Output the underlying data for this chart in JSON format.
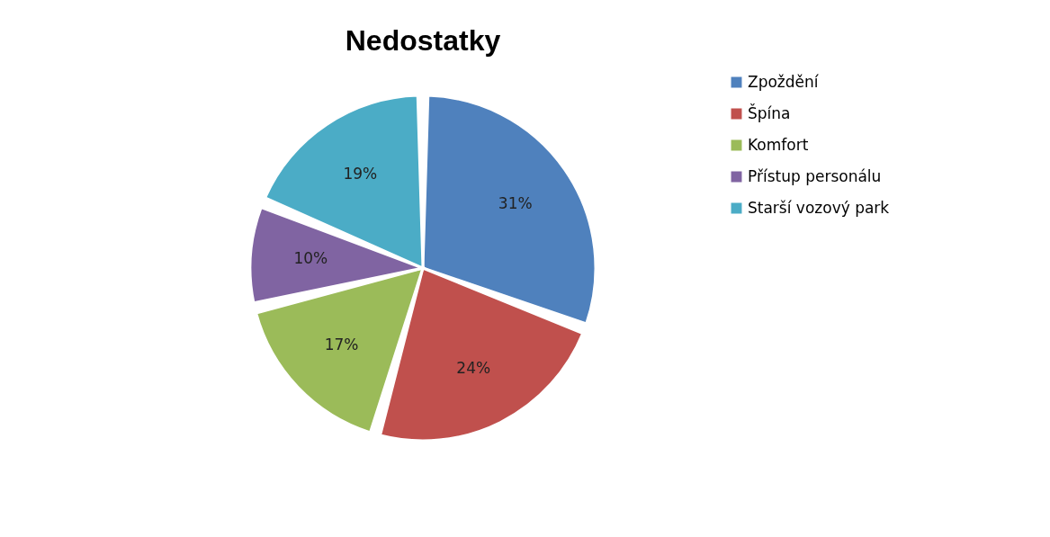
{
  "chart_data": {
    "type": "pie",
    "title": "Nedostatky",
    "categories": [
      "Zpoždění",
      "Špína",
      "Komfort",
      "Přístup personálu",
      "Starší vozový park"
    ],
    "values": [
      31,
      24,
      17,
      10,
      19
    ],
    "colors": [
      "#4f81bd",
      "#c0504d",
      "#9bbb59",
      "#8064a2",
      "#4bacc6"
    ],
    "value_labels": [
      "31%",
      "24%",
      "17%",
      "10%",
      "19%"
    ],
    "legend": "right"
  }
}
